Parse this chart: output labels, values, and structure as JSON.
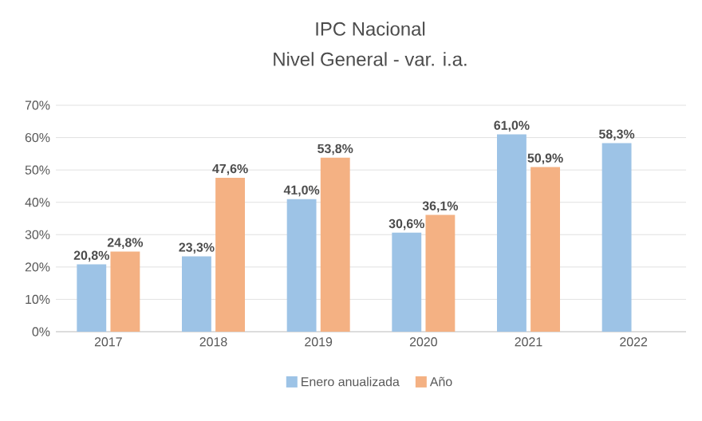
{
  "chart_data": {
    "type": "bar",
    "title": "IPC Nacional",
    "subtitle": "Nivel General - var. i.a.",
    "categories": [
      "2017",
      "2018",
      "2019",
      "2020",
      "2021",
      "2022"
    ],
    "series": [
      {
        "name": "Enero anualizada",
        "color": "#9dc3e6",
        "values": [
          20.8,
          23.3,
          41.0,
          30.6,
          61.0,
          58.3
        ],
        "value_labels": [
          "20,8%",
          "23,3%",
          "41,0%",
          "30,6%",
          "61,0%",
          "58,3%"
        ]
      },
      {
        "name": "Año",
        "color": "#f4b183",
        "values": [
          24.8,
          47.6,
          53.8,
          36.1,
          50.9,
          null
        ],
        "value_labels": [
          "24,8%",
          "47,6%",
          "53,8%",
          "36,1%",
          "50,9%",
          null
        ]
      }
    ],
    "ylim": [
      0,
      70
    ],
    "yticks": [
      {
        "value": 0,
        "label": "0%"
      },
      {
        "value": 10,
        "label": "10%"
      },
      {
        "value": 20,
        "label": "20%"
      },
      {
        "value": 30,
        "label": "30%"
      },
      {
        "value": 40,
        "label": "40%"
      },
      {
        "value": 50,
        "label": "50%"
      },
      {
        "value": 60,
        "label": "60%"
      },
      {
        "value": 70,
        "label": "70%"
      }
    ],
    "grid": "y",
    "legend": "bottom"
  }
}
